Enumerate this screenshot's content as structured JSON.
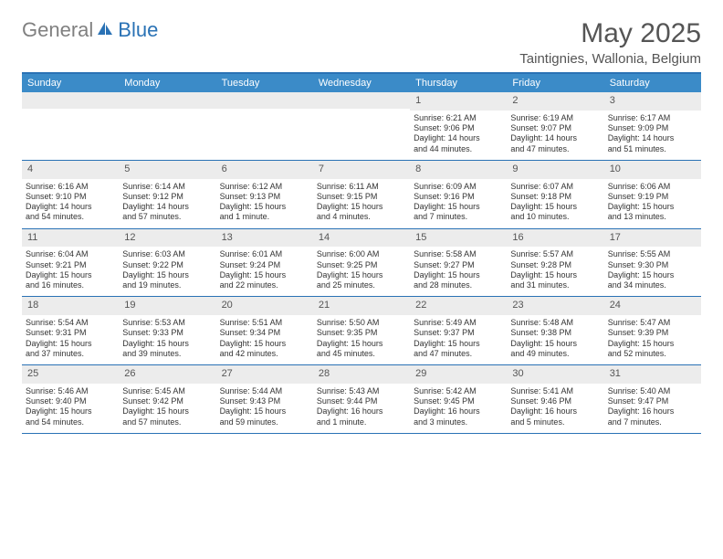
{
  "brand": {
    "gen": "General",
    "blue": "Blue"
  },
  "title": "May 2025",
  "location": "Taintignies, Wallonia, Belgium",
  "colors": {
    "header_bar": "#3b8bc8",
    "rule": "#2a72b5",
    "daynum_bg": "#ececec",
    "text": "#333333",
    "title_text": "#555555"
  },
  "weekdays": [
    "Sunday",
    "Monday",
    "Tuesday",
    "Wednesday",
    "Thursday",
    "Friday",
    "Saturday"
  ],
  "weeks": [
    [
      {
        "n": "",
        "sr": "",
        "ss": "",
        "dl1": "",
        "dl2": ""
      },
      {
        "n": "",
        "sr": "",
        "ss": "",
        "dl1": "",
        "dl2": ""
      },
      {
        "n": "",
        "sr": "",
        "ss": "",
        "dl1": "",
        "dl2": ""
      },
      {
        "n": "",
        "sr": "",
        "ss": "",
        "dl1": "",
        "dl2": ""
      },
      {
        "n": "1",
        "sr": "Sunrise: 6:21 AM",
        "ss": "Sunset: 9:06 PM",
        "dl1": "Daylight: 14 hours",
        "dl2": "and 44 minutes."
      },
      {
        "n": "2",
        "sr": "Sunrise: 6:19 AM",
        "ss": "Sunset: 9:07 PM",
        "dl1": "Daylight: 14 hours",
        "dl2": "and 47 minutes."
      },
      {
        "n": "3",
        "sr": "Sunrise: 6:17 AM",
        "ss": "Sunset: 9:09 PM",
        "dl1": "Daylight: 14 hours",
        "dl2": "and 51 minutes."
      }
    ],
    [
      {
        "n": "4",
        "sr": "Sunrise: 6:16 AM",
        "ss": "Sunset: 9:10 PM",
        "dl1": "Daylight: 14 hours",
        "dl2": "and 54 minutes."
      },
      {
        "n": "5",
        "sr": "Sunrise: 6:14 AM",
        "ss": "Sunset: 9:12 PM",
        "dl1": "Daylight: 14 hours",
        "dl2": "and 57 minutes."
      },
      {
        "n": "6",
        "sr": "Sunrise: 6:12 AM",
        "ss": "Sunset: 9:13 PM",
        "dl1": "Daylight: 15 hours",
        "dl2": "and 1 minute."
      },
      {
        "n": "7",
        "sr": "Sunrise: 6:11 AM",
        "ss": "Sunset: 9:15 PM",
        "dl1": "Daylight: 15 hours",
        "dl2": "and 4 minutes."
      },
      {
        "n": "8",
        "sr": "Sunrise: 6:09 AM",
        "ss": "Sunset: 9:16 PM",
        "dl1": "Daylight: 15 hours",
        "dl2": "and 7 minutes."
      },
      {
        "n": "9",
        "sr": "Sunrise: 6:07 AM",
        "ss": "Sunset: 9:18 PM",
        "dl1": "Daylight: 15 hours",
        "dl2": "and 10 minutes."
      },
      {
        "n": "10",
        "sr": "Sunrise: 6:06 AM",
        "ss": "Sunset: 9:19 PM",
        "dl1": "Daylight: 15 hours",
        "dl2": "and 13 minutes."
      }
    ],
    [
      {
        "n": "11",
        "sr": "Sunrise: 6:04 AM",
        "ss": "Sunset: 9:21 PM",
        "dl1": "Daylight: 15 hours",
        "dl2": "and 16 minutes."
      },
      {
        "n": "12",
        "sr": "Sunrise: 6:03 AM",
        "ss": "Sunset: 9:22 PM",
        "dl1": "Daylight: 15 hours",
        "dl2": "and 19 minutes."
      },
      {
        "n": "13",
        "sr": "Sunrise: 6:01 AM",
        "ss": "Sunset: 9:24 PM",
        "dl1": "Daylight: 15 hours",
        "dl2": "and 22 minutes."
      },
      {
        "n": "14",
        "sr": "Sunrise: 6:00 AM",
        "ss": "Sunset: 9:25 PM",
        "dl1": "Daylight: 15 hours",
        "dl2": "and 25 minutes."
      },
      {
        "n": "15",
        "sr": "Sunrise: 5:58 AM",
        "ss": "Sunset: 9:27 PM",
        "dl1": "Daylight: 15 hours",
        "dl2": "and 28 minutes."
      },
      {
        "n": "16",
        "sr": "Sunrise: 5:57 AM",
        "ss": "Sunset: 9:28 PM",
        "dl1": "Daylight: 15 hours",
        "dl2": "and 31 minutes."
      },
      {
        "n": "17",
        "sr": "Sunrise: 5:55 AM",
        "ss": "Sunset: 9:30 PM",
        "dl1": "Daylight: 15 hours",
        "dl2": "and 34 minutes."
      }
    ],
    [
      {
        "n": "18",
        "sr": "Sunrise: 5:54 AM",
        "ss": "Sunset: 9:31 PM",
        "dl1": "Daylight: 15 hours",
        "dl2": "and 37 minutes."
      },
      {
        "n": "19",
        "sr": "Sunrise: 5:53 AM",
        "ss": "Sunset: 9:33 PM",
        "dl1": "Daylight: 15 hours",
        "dl2": "and 39 minutes."
      },
      {
        "n": "20",
        "sr": "Sunrise: 5:51 AM",
        "ss": "Sunset: 9:34 PM",
        "dl1": "Daylight: 15 hours",
        "dl2": "and 42 minutes."
      },
      {
        "n": "21",
        "sr": "Sunrise: 5:50 AM",
        "ss": "Sunset: 9:35 PM",
        "dl1": "Daylight: 15 hours",
        "dl2": "and 45 minutes."
      },
      {
        "n": "22",
        "sr": "Sunrise: 5:49 AM",
        "ss": "Sunset: 9:37 PM",
        "dl1": "Daylight: 15 hours",
        "dl2": "and 47 minutes."
      },
      {
        "n": "23",
        "sr": "Sunrise: 5:48 AM",
        "ss": "Sunset: 9:38 PM",
        "dl1": "Daylight: 15 hours",
        "dl2": "and 49 minutes."
      },
      {
        "n": "24",
        "sr": "Sunrise: 5:47 AM",
        "ss": "Sunset: 9:39 PM",
        "dl1": "Daylight: 15 hours",
        "dl2": "and 52 minutes."
      }
    ],
    [
      {
        "n": "25",
        "sr": "Sunrise: 5:46 AM",
        "ss": "Sunset: 9:40 PM",
        "dl1": "Daylight: 15 hours",
        "dl2": "and 54 minutes."
      },
      {
        "n": "26",
        "sr": "Sunrise: 5:45 AM",
        "ss": "Sunset: 9:42 PM",
        "dl1": "Daylight: 15 hours",
        "dl2": "and 57 minutes."
      },
      {
        "n": "27",
        "sr": "Sunrise: 5:44 AM",
        "ss": "Sunset: 9:43 PM",
        "dl1": "Daylight: 15 hours",
        "dl2": "and 59 minutes."
      },
      {
        "n": "28",
        "sr": "Sunrise: 5:43 AM",
        "ss": "Sunset: 9:44 PM",
        "dl1": "Daylight: 16 hours",
        "dl2": "and 1 minute."
      },
      {
        "n": "29",
        "sr": "Sunrise: 5:42 AM",
        "ss": "Sunset: 9:45 PM",
        "dl1": "Daylight: 16 hours",
        "dl2": "and 3 minutes."
      },
      {
        "n": "30",
        "sr": "Sunrise: 5:41 AM",
        "ss": "Sunset: 9:46 PM",
        "dl1": "Daylight: 16 hours",
        "dl2": "and 5 minutes."
      },
      {
        "n": "31",
        "sr": "Sunrise: 5:40 AM",
        "ss": "Sunset: 9:47 PM",
        "dl1": "Daylight: 16 hours",
        "dl2": "and 7 minutes."
      }
    ]
  ]
}
